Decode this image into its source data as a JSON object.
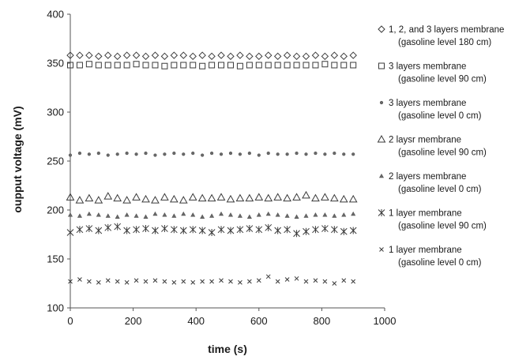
{
  "chart_data": {
    "type": "scatter",
    "xlabel": "time (s)",
    "ylabel": "oupput voltage (mV)",
    "xlim": [
      0,
      1000
    ],
    "ylim": [
      100,
      400
    ],
    "x_ticks": [
      "0",
      "200",
      "400",
      "600",
      "800",
      "1000"
    ],
    "y_ticks": [
      "100",
      "150",
      "200",
      "250",
      "300",
      "350",
      "400"
    ],
    "legend_position": "right",
    "grid": false,
    "x": [
      0,
      30,
      60,
      90,
      120,
      150,
      180,
      210,
      240,
      270,
      300,
      330,
      360,
      390,
      420,
      450,
      480,
      510,
      540,
      570,
      600,
      630,
      660,
      690,
      720,
      750,
      780,
      810,
      840,
      870,
      900
    ],
    "series": [
      {
        "name": "1, 2, and 3 layers membrane",
        "name_line2": "(gasoline level 180 cm)",
        "marker": "diamond",
        "values": [
          358,
          358,
          358,
          357,
          358,
          357,
          358,
          358,
          357,
          358,
          357,
          358,
          358,
          357,
          358,
          357,
          358,
          357,
          358,
          357,
          357,
          358,
          357,
          358,
          357,
          357,
          358,
          357,
          358,
          357,
          358
        ]
      },
      {
        "name": "3 layers membrane",
        "name_line2": "(gasoline level 90 cm)",
        "marker": "square",
        "values": [
          348,
          348,
          349,
          348,
          348,
          348,
          348,
          349,
          348,
          348,
          347,
          348,
          348,
          348,
          347,
          348,
          348,
          348,
          347,
          348,
          348,
          348,
          348,
          348,
          348,
          348,
          348,
          349,
          348,
          348,
          348
        ]
      },
      {
        "name": "3 layers membrane",
        "name_line2": "(gasoline level 0 cm)",
        "marker": "dot",
        "values": [
          256,
          258,
          257,
          258,
          256,
          257,
          258,
          257,
          258,
          256,
          257,
          258,
          257,
          258,
          256,
          258,
          257,
          258,
          257,
          258,
          256,
          258,
          257,
          257,
          258,
          257,
          258,
          257,
          258,
          257,
          257
        ]
      },
      {
        "name": "2 laysr membrane",
        "name_line2": "(gasoline level 90 cm)",
        "marker": "triangle-open",
        "values": [
          213,
          210,
          212,
          210,
          214,
          212,
          210,
          213,
          211,
          210,
          213,
          211,
          210,
          213,
          212,
          212,
          213,
          211,
          212,
          212,
          213,
          212,
          213,
          212,
          213,
          215,
          212,
          213,
          212,
          211,
          211
        ]
      },
      {
        "name": "2 layers membrane",
        "name_line2": "(gasoline level 0 cm)",
        "marker": "triangle-small",
        "values": [
          195,
          194,
          196,
          195,
          194,
          193,
          195,
          194,
          193,
          196,
          195,
          194,
          196,
          195,
          193,
          194,
          196,
          195,
          194,
          193,
          195,
          196,
          195,
          194,
          193,
          194,
          195,
          195,
          194,
          195,
          196
        ]
      },
      {
        "name": "1 layer membrane",
        "name_line2": "(gasoline level 90 cm)",
        "marker": "asterisk",
        "values": [
          177,
          180,
          181,
          179,
          182,
          183,
          179,
          180,
          181,
          179,
          181,
          180,
          179,
          180,
          179,
          177,
          180,
          179,
          180,
          181,
          180,
          182,
          179,
          180,
          176,
          178,
          180,
          181,
          180,
          178,
          179
        ]
      },
      {
        "name": "1 layer membrane",
        "name_line2": "(gasoline level 0 cm)",
        "marker": "x-small",
        "values": [
          127,
          129,
          127,
          126,
          128,
          127,
          126,
          128,
          127,
          128,
          127,
          126,
          127,
          126,
          127,
          127,
          128,
          127,
          126,
          127,
          128,
          132,
          127,
          129,
          130,
          127,
          128,
          127,
          125,
          128,
          127
        ]
      }
    ]
  }
}
